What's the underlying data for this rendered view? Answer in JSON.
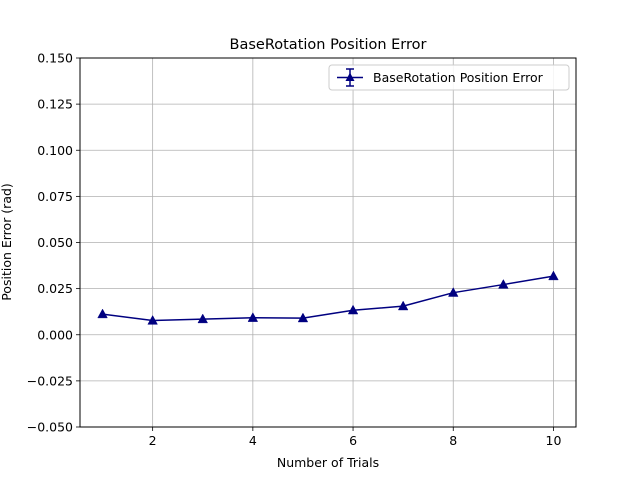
{
  "chart_data": {
    "type": "line",
    "title": "BaseRotation Position Error",
    "xlabel": "Number of Trials",
    "ylabel": "Position Error (rad)",
    "xlim": [
      0.55,
      10.45
    ],
    "ylim": [
      -0.05,
      0.15
    ],
    "xticks": [
      2,
      4,
      6,
      8,
      10
    ],
    "xtick_labels": [
      "2",
      "4",
      "6",
      "8",
      "10"
    ],
    "yticks": [
      -0.05,
      -0.025,
      0.0,
      0.025,
      0.05,
      0.075,
      0.1,
      0.125,
      0.15
    ],
    "ytick_labels": [
      "−0.050",
      "−0.025",
      "0.000",
      "0.025",
      "0.050",
      "0.075",
      "0.100",
      "0.125",
      "0.150"
    ],
    "grid": true,
    "legend_position": "top-right",
    "series": [
      {
        "name": "BaseRotation Position Error",
        "color": "#000080",
        "marker": "triangle-up",
        "error_bars": true,
        "x": [
          1,
          2,
          3,
          4,
          5,
          6,
          7,
          8,
          9,
          10
        ],
        "y": [
          0.0112,
          0.0077,
          0.0085,
          0.0092,
          0.009,
          0.0133,
          0.0155,
          0.0228,
          0.0272,
          0.0318
        ]
      }
    ]
  }
}
